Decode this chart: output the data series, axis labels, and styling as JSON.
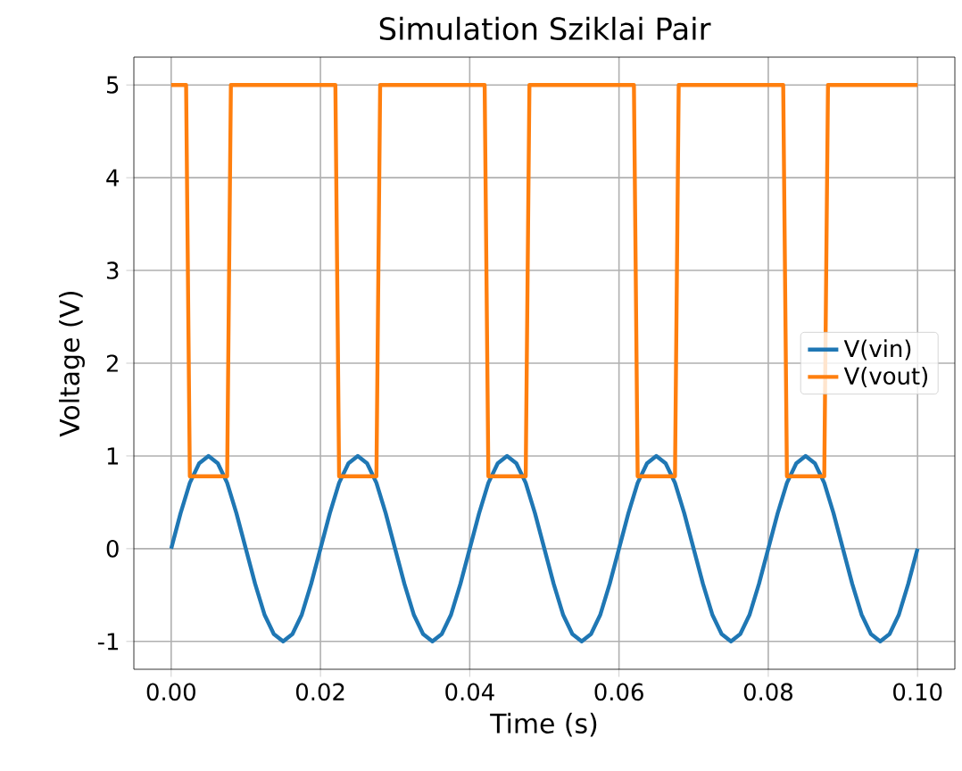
{
  "chart_data": {
    "type": "line",
    "title": "Simulation Sziklai Pair",
    "xlabel": "Time (s)",
    "ylabel": "Voltage (V)",
    "xlim": [
      -0.005,
      0.105
    ],
    "ylim": [
      -1.3,
      5.3
    ],
    "xticks": [
      {
        "value": 0,
        "label": "0.00"
      },
      {
        "value": 0.02,
        "label": "0.02"
      },
      {
        "value": 0.04,
        "label": "0.04"
      },
      {
        "value": 0.06,
        "label": "0.06"
      },
      {
        "value": 0.08,
        "label": "0.08"
      },
      {
        "value": 0.1,
        "label": "0.10"
      }
    ],
    "yticks": [
      -1,
      0,
      1,
      2,
      3,
      4,
      5
    ],
    "grid": true,
    "legend": "right",
    "line_style": "solid",
    "marker": "none",
    "series": [
      {
        "name": "V(vin)",
        "color": "#1f77b4",
        "x": [
          0,
          0.00125,
          0.0025,
          0.00375,
          0.005,
          0.00625,
          0.0075,
          0.00875,
          0.01,
          0.01125,
          0.0125,
          0.01375,
          0.015,
          0.01625,
          0.0175,
          0.01875,
          0.02,
          0.02125,
          0.0225,
          0.02375,
          0.025,
          0.02625,
          0.0275,
          0.02875,
          0.03,
          0.03125,
          0.0325,
          0.03375,
          0.035,
          0.03625,
          0.0375,
          0.03875,
          0.04,
          0.04125,
          0.0425,
          0.04375,
          0.045,
          0.04625,
          0.0475,
          0.04875,
          0.05,
          0.05125,
          0.0525,
          0.05375,
          0.055,
          0.05625,
          0.0575,
          0.05875,
          0.06,
          0.06125,
          0.0625,
          0.06375,
          0.065,
          0.06625,
          0.0675,
          0.06875,
          0.07,
          0.07125,
          0.0725,
          0.07375,
          0.075,
          0.07625,
          0.0775,
          0.07875,
          0.08,
          0.08125,
          0.0825,
          0.08375,
          0.085,
          0.08625,
          0.0875,
          0.08875,
          0.09,
          0.09125,
          0.0925,
          0.09375,
          0.095,
          0.09625,
          0.0975,
          0.09875,
          0.1
        ],
        "values": [
          0,
          0.38,
          0.71,
          0.92,
          1,
          0.92,
          0.71,
          0.38,
          0,
          -0.38,
          -0.71,
          -0.92,
          -1,
          -0.92,
          -0.71,
          -0.38,
          0,
          0.38,
          0.71,
          0.92,
          1,
          0.92,
          0.71,
          0.38,
          0,
          -0.38,
          -0.71,
          -0.92,
          -1,
          -0.92,
          -0.71,
          -0.38,
          0,
          0.38,
          0.71,
          0.92,
          1,
          0.92,
          0.71,
          0.38,
          0,
          -0.38,
          -0.71,
          -0.92,
          -1,
          -0.92,
          -0.71,
          -0.38,
          0,
          0.38,
          0.71,
          0.92,
          1,
          0.92,
          0.71,
          0.38,
          0,
          -0.38,
          -0.71,
          -0.92,
          -1,
          -0.92,
          -0.71,
          -0.38,
          0,
          0.38,
          0.71,
          0.92,
          1,
          0.92,
          0.71,
          0.38,
          0,
          -0.38,
          -0.71,
          -0.92,
          -1,
          -0.92,
          -0.71,
          -0.38,
          0
        ]
      },
      {
        "name": "V(vout)",
        "color": "#ff7f0e",
        "x": [
          0,
          0.002,
          0.0025,
          0.0075,
          0.008,
          0.022,
          0.0225,
          0.0275,
          0.028,
          0.042,
          0.0425,
          0.0475,
          0.048,
          0.062,
          0.0625,
          0.0675,
          0.068,
          0.082,
          0.0825,
          0.0875,
          0.088,
          0.1
        ],
        "values": [
          5,
          5,
          0.78,
          0.78,
          5,
          5,
          0.78,
          0.78,
          5,
          5,
          0.78,
          0.78,
          5,
          5,
          0.78,
          0.78,
          5,
          5,
          0.78,
          0.78,
          5,
          5
        ]
      }
    ]
  }
}
